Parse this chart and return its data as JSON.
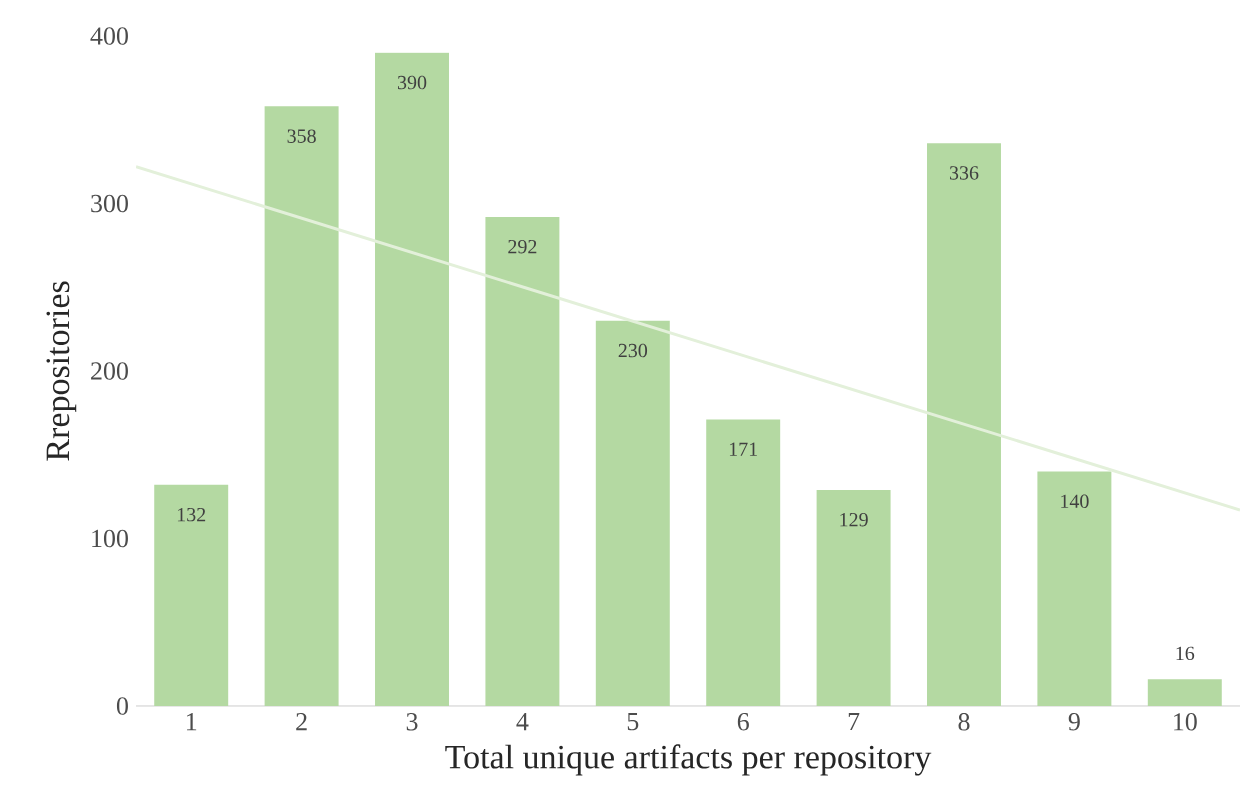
{
  "chart_data": {
    "type": "bar",
    "xlabel": "Total unique artifacts per repository",
    "ylabel": "Rrepositories",
    "x": [
      1,
      2,
      3,
      4,
      5,
      6,
      7,
      8,
      9,
      10
    ],
    "xlim": [
      0.5,
      10.5
    ],
    "xticks": [
      1,
      2,
      3,
      4,
      5,
      6,
      7,
      8,
      9,
      10
    ],
    "ylim": [
      0,
      400
    ],
    "yticks": [
      0,
      100,
      200,
      300,
      400
    ],
    "series": [
      {
        "color": "#b4d9a2",
        "values": [
          132,
          358,
          390,
          292,
          230,
          171,
          129,
          336,
          140,
          16
        ],
        "value_labels": [
          "132",
          "358",
          "390",
          "292",
          "230",
          "171",
          "129",
          "336",
          "140",
          "16"
        ]
      },
      {
        "type": "line",
        "color": "#e3f0da",
        "x": [
          0.5,
          10.5
        ],
        "values": [
          322,
          117
        ]
      }
    ]
  }
}
